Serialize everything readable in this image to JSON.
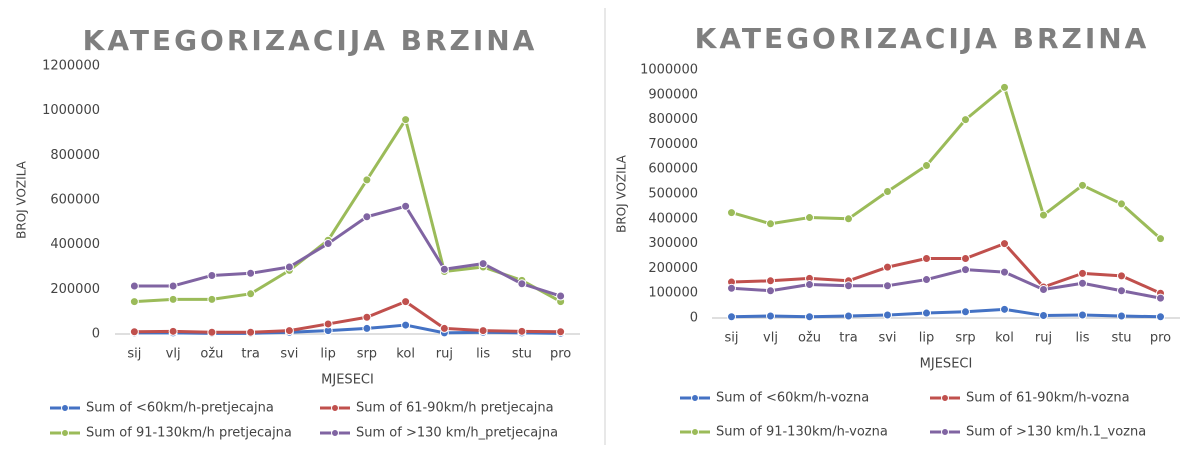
{
  "chart_data": [
    {
      "type": "line",
      "title": "KATEGORIZACIJA BRZINA",
      "x_label": "MJESECI",
      "y_label": "BROJ VOZILA",
      "categories": [
        "sij",
        "vlj",
        "ožu",
        "tra",
        "svi",
        "lip",
        "srp",
        "kol",
        "ruj",
        "lis",
        "stu",
        "pro"
      ],
      "ylim": [
        0,
        1200000
      ],
      "yticks": [
        0,
        200000,
        400000,
        600000,
        800000,
        1000000,
        1200000
      ],
      "legend": "bottom",
      "series": [
        {
          "name": "Sum of <60km/h-pretjecajna",
          "color": "#4472c4",
          "values": [
            5000,
            5000,
            3000,
            3000,
            8000,
            15000,
            25000,
            40000,
            5000,
            8000,
            5000,
            3000
          ]
        },
        {
          "name": "Sum of 61-90km/h pretjecajna",
          "color": "#c0504d",
          "values": [
            10000,
            12000,
            8000,
            8000,
            15000,
            45000,
            75000,
            145000,
            25000,
            15000,
            12000,
            10000
          ]
        },
        {
          "name": "Sum of 91-130km/h pretjecajna",
          "color": "#9bbb59",
          "values": [
            145000,
            155000,
            155000,
            180000,
            285000,
            420000,
            690000,
            960000,
            280000,
            300000,
            240000,
            145000
          ]
        },
        {
          "name": "Sum of >130 km/h_pretjecajna",
          "color": "#8064a2",
          "values": [
            215000,
            215000,
            262000,
            272000,
            300000,
            405000,
            525000,
            572000,
            290000,
            315000,
            225000,
            170000
          ]
        }
      ]
    },
    {
      "type": "line",
      "title": "KATEGORIZACIJA BRZINA",
      "x_label": "MJESECI",
      "y_label": "BROJ VOZILA",
      "categories": [
        "sij",
        "vlj",
        "ožu",
        "tra",
        "svi",
        "lip",
        "srp",
        "kol",
        "ruj",
        "lis",
        "stu",
        "pro"
      ],
      "ylim": [
        0,
        1000000
      ],
      "yticks": [
        0,
        100000,
        200000,
        300000,
        400000,
        500000,
        600000,
        700000,
        800000,
        900000,
        1000000
      ],
      "legend": "bottom",
      "series": [
        {
          "name": "Sum of <60km/h-vozna",
          "color": "#4472c4",
          "values": [
            5000,
            8000,
            5000,
            8000,
            12000,
            20000,
            25000,
            35000,
            10000,
            12000,
            8000,
            5000
          ]
        },
        {
          "name": "Sum of 61-90km/h-vozna",
          "color": "#c0504d",
          "values": [
            145000,
            150000,
            160000,
            150000,
            205000,
            240000,
            240000,
            300000,
            125000,
            180000,
            170000,
            100000
          ]
        },
        {
          "name": "Sum of 91-130km/h-vozna",
          "color": "#9bbb59",
          "values": [
            425000,
            380000,
            405000,
            400000,
            510000,
            615000,
            800000,
            930000,
            415000,
            535000,
            460000,
            320000
          ]
        },
        {
          "name": "Sum of >130 km/h.1_vozna",
          "color": "#8064a2",
          "values": [
            120000,
            110000,
            135000,
            130000,
            130000,
            155000,
            195000,
            185000,
            115000,
            140000,
            110000,
            80000
          ]
        }
      ]
    }
  ]
}
